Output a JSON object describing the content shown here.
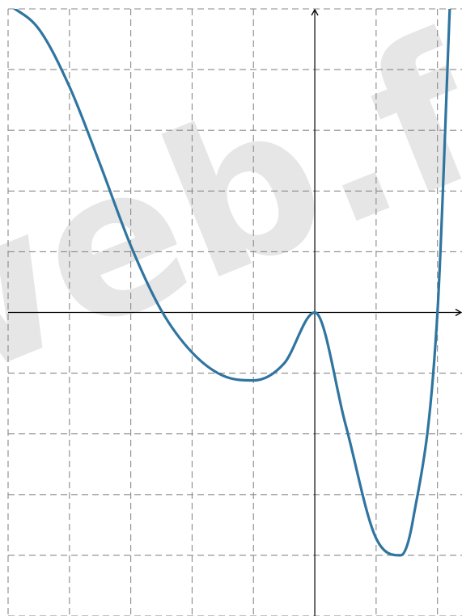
{
  "watermark_text": "web.fr",
  "colors": {
    "curve": "#2f75a0",
    "grid": "#8a8a8a",
    "axis": "#000000",
    "watermark": "#e6e6e6"
  },
  "chart_data": {
    "type": "line",
    "title": "",
    "xlabel": "",
    "ylabel": "",
    "xlim": [
      -5,
      2.4
    ],
    "ylim": [
      -5,
      5
    ],
    "grid": true,
    "grid_step": 1,
    "tick_labels": "none",
    "series": [
      {
        "x": [
          -5,
          -4.5,
          -4,
          -3.5,
          -3,
          -2.5,
          -2,
          -1.5,
          -1,
          -0.5,
          0,
          0.5,
          1,
          1.4,
          1.6,
          2,
          2.2
        ],
        "y": [
          5.08,
          4.67,
          3.72,
          2.44,
          1.1,
          0.03,
          -0.66,
          -1.04,
          -1.12,
          -0.84,
          0,
          -1.84,
          -3.72,
          -4.0,
          -3.42,
          0,
          5
        ]
      }
    ]
  }
}
